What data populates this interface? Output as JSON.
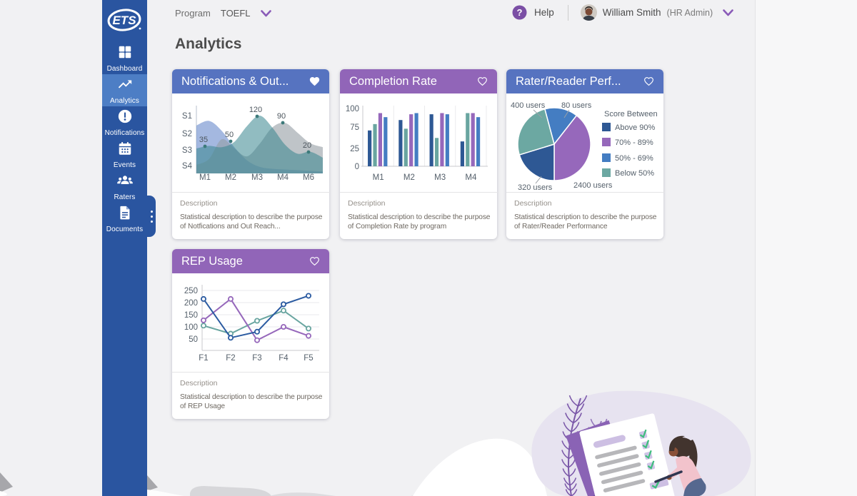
{
  "brand": {
    "logo_text": "ETS"
  },
  "sidebar": {
    "items": [
      {
        "label": "Dashboard",
        "icon": "dashboard-grid-icon",
        "active": false
      },
      {
        "label": "Analytics",
        "icon": "analytics-trend-icon",
        "active": true
      },
      {
        "label": "Notifications",
        "icon": "notification-alert-icon",
        "active": false
      },
      {
        "label": "Events",
        "icon": "calendar-icon",
        "active": false
      },
      {
        "label": "Raters",
        "icon": "people-group-icon",
        "active": false
      },
      {
        "label": "Documents",
        "icon": "document-icon",
        "active": false
      }
    ]
  },
  "topbar": {
    "program_label": "Program",
    "program_value": "TOEFL",
    "help_label": "Help",
    "user_name": "William Smith",
    "user_role": "(HR Admin)"
  },
  "page_title": "Analytics",
  "palette": {
    "sidebar": "#2a55a0",
    "sidebar_active": "#4d7ec5",
    "header_blue": "#5673c0",
    "header_purple": "#9165b8",
    "navy": "#2e5894",
    "teal": "#69a5a0",
    "purple": "#9668bb",
    "blue": "#447dc2"
  },
  "cards": [
    {
      "title": "Notifications & Out...",
      "accent": "#5673c0",
      "heart": "filled",
      "description_label": "Description",
      "description": "Statistical description to describe the purpose of Notfications and Out Reach..."
    },
    {
      "title": "Completion Rate",
      "accent": "#9165b8",
      "heart": "outline",
      "description_label": "Description",
      "description": "Statistical description to describe the purpose of Completion Rate by program"
    },
    {
      "title": "Rater/Reader Perf...",
      "accent": "#5673c0",
      "heart": "outline",
      "description_label": "Description",
      "description": "Statistical description to describe the purpose of Rater/Reader Performance"
    },
    {
      "title": "REP Usage",
      "accent": "#9165b8",
      "heart": "outline",
      "description_label": "Description",
      "description": "Statistical description to describe the purpose of REP Usage"
    }
  ],
  "chart_data": [
    {
      "type": "area",
      "title": "Notifications & Out...",
      "x_labels": [
        "M1",
        "M2",
        "M3",
        "M4",
        "M6"
      ],
      "y_labels": [
        "S1",
        "S2",
        "S3",
        "S4"
      ],
      "labeled_points": [
        {
          "x": "M1",
          "value": 35
        },
        {
          "x": "M2",
          "value": 50
        },
        {
          "x": "M3",
          "value": 120
        },
        {
          "x": "M4",
          "value": 90
        },
        {
          "x": "M6",
          "value": 20
        }
      ],
      "point_dot_color": "#3c7a7a",
      "series": [
        {
          "name": "blue",
          "color": "rgba(108,140,205,0.62)",
          "values": [
            73,
            80,
            65,
            40,
            20,
            10,
            7,
            6,
            5,
            4,
            3
          ]
        },
        {
          "name": "gray",
          "color": "rgba(148,156,163,0.6)",
          "values": [
            13,
            22,
            52,
            38,
            26,
            45,
            70,
            77,
            62,
            46,
            40
          ]
        },
        {
          "name": "teal",
          "color": "rgba(55,133,142,0.55)",
          "values": [
            38,
            42,
            40,
            48,
            72,
            88,
            70,
            44,
            30,
            33,
            24
          ]
        }
      ]
    },
    {
      "type": "bar",
      "title": "Completion Rate",
      "categories": [
        "M1",
        "M2",
        "M3",
        "M4"
      ],
      "y_ticks": [
        100,
        75,
        25,
        0
      ],
      "ylim": [
        0,
        100
      ],
      "series": [
        {
          "name": "series-navy",
          "color": "#2e5894",
          "values": [
            62,
            80,
            90,
            43
          ]
        },
        {
          "name": "series-teal",
          "color": "#69a5a0",
          "values": [
            73,
            65,
            49,
            92
          ]
        },
        {
          "name": "series-purple",
          "color": "#9668bb",
          "values": [
            92,
            90,
            92,
            92
          ]
        },
        {
          "name": "series-blue",
          "color": "#447dc2",
          "values": [
            85,
            92,
            90,
            85
          ]
        }
      ]
    },
    {
      "type": "pie",
      "title": "Rater/Reader Perf...",
      "legend_title": "Score Between",
      "slices": [
        {
          "label": "80 users",
          "legend": "50% - 69%",
          "color": "#447dc2",
          "start": -15,
          "end": 38
        },
        {
          "label": "2400 users",
          "legend": "70% - 89%",
          "color": "#9668bb",
          "start": 38,
          "end": 180
        },
        {
          "label": "320 users",
          "legend": "Above 90%",
          "color": "#2e5894",
          "start": 180,
          "end": 253
        },
        {
          "label": "400 users",
          "legend": "Below 50%",
          "color": "#6ca8a2",
          "start": 253,
          "end": 345
        }
      ],
      "legend": [
        {
          "label": "Above 90%",
          "color": "#2e5894"
        },
        {
          "label": "70% - 89%",
          "color": "#9668bb"
        },
        {
          "label": "50% - 69%",
          "color": "#447dc2"
        },
        {
          "label": "Below 50%",
          "color": "#6ca8a2"
        }
      ]
    },
    {
      "type": "line",
      "title": "REP Usage",
      "categories": [
        "F1",
        "F2",
        "F3",
        "F4",
        "F5"
      ],
      "y_ticks": [
        250,
        200,
        150,
        100,
        50
      ],
      "series": [
        {
          "name": "line-teal",
          "color": "#69a5a0",
          "values": [
            105,
            72,
            125,
            167,
            93
          ]
        },
        {
          "name": "line-purple",
          "color": "#9668bb",
          "values": [
            127,
            215,
            45,
            100,
            63
          ]
        },
        {
          "name": "line-navy",
          "color": "#2b5ba1",
          "values": [
            215,
            55,
            80,
            193,
            228
          ]
        }
      ]
    }
  ]
}
